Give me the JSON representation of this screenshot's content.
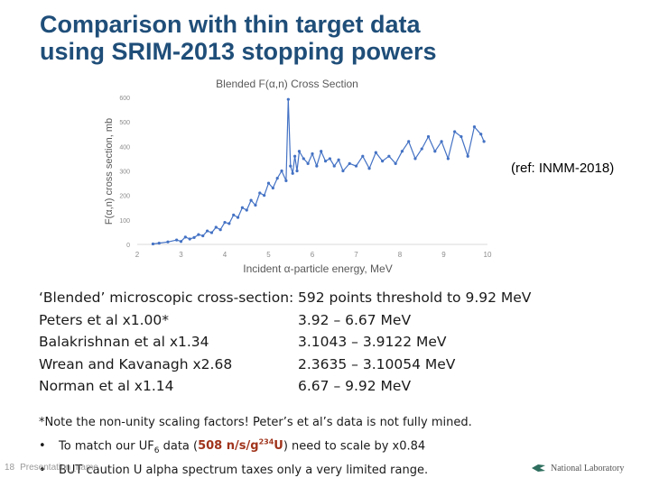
{
  "title_line1": "Comparison with thin target data",
  "title_line2": "using SRIM-2013 stopping powers",
  "ref": "(ref: INMM-2018)",
  "chart_data": {
    "type": "line",
    "title": "Blended F(α,n) Cross Section",
    "xlabel": "Incident α-particle energy, MeV",
    "ylabel": "F(α,n) cross section, mb",
    "xlim": [
      2,
      10
    ],
    "ylim": [
      0,
      600
    ],
    "xticks": [
      "2",
      "3",
      "4",
      "5",
      "6",
      "7",
      "8",
      "9",
      "10"
    ],
    "yticks": [
      "0",
      "100",
      "200",
      "300",
      "400",
      "500",
      "600"
    ],
    "grid": false,
    "legend": "none",
    "color": "#4472c4",
    "series": [
      {
        "x": [
          2.36,
          2.5,
          2.7,
          2.9,
          3.0,
          3.1,
          3.2,
          3.3,
          3.4,
          3.5,
          3.6,
          3.7,
          3.8,
          3.9,
          4.0,
          4.1,
          4.2,
          4.3,
          4.4,
          4.5,
          4.6,
          4.7,
          4.8,
          4.9,
          5.0,
          5.1,
          5.2,
          5.3,
          5.4,
          5.45,
          5.5,
          5.55,
          5.6,
          5.65,
          5.7,
          5.8,
          5.9,
          6.0,
          6.1,
          6.2,
          6.3,
          6.4,
          6.5,
          6.6,
          6.7,
          6.85,
          7.0,
          7.15,
          7.3,
          7.45,
          7.6,
          7.75,
          7.9,
          8.05,
          8.2,
          8.35,
          8.5,
          8.65,
          8.8,
          8.95,
          9.1,
          9.25,
          9.4,
          9.55,
          9.7,
          9.85,
          9.92
        ],
        "y": [
          2,
          5,
          10,
          18,
          12,
          30,
          22,
          28,
          40,
          35,
          55,
          48,
          70,
          60,
          90,
          85,
          120,
          110,
          150,
          140,
          180,
          160,
          210,
          200,
          250,
          230,
          270,
          300,
          260,
          592,
          320,
          290,
          360,
          300,
          380,
          350,
          330,
          370,
          320,
          380,
          340,
          350,
          320,
          345,
          300,
          330,
          320,
          360,
          310,
          375,
          340,
          360,
          330,
          380,
          420,
          350,
          390,
          440,
          380,
          420,
          350,
          460,
          440,
          360,
          480,
          450,
          420
        ]
      }
    ]
  },
  "lines": [
    {
      "left": "‘Blended’ microscopic cross-section:",
      "right": "592 points threshold to 9.92 MeV"
    },
    {
      "left": "Peters et al x1.00*",
      "right": "3.92 – 6.67 MeV"
    },
    {
      "left": "Balakrishnan et al x1.34",
      "right": "3.1043 – 3.9122 MeV"
    },
    {
      "left": "Wrean and Kavanagh x2.68",
      "right": "2.3635 – 3.10054 MeV"
    },
    {
      "left": "Norman et al x1.14",
      "right": "6.67 – 9.92 MeV"
    }
  ],
  "note": {
    "line1": "*Note the non-unity scaling factors! Peter’s et al’s data is not fully mined.",
    "bullet_marker": "•",
    "bullet1_pre": "To match our UF",
    "bullet1_sub": "6",
    "bullet1_mid": " data (",
    "bullet1_hl_a": "508 n/s/g",
    "bullet1_hl_sup": "234",
    "bullet1_hl_b": "U",
    "bullet1_post": ") need to scale by x0.84",
    "bullet2": "BUT caution U alpha spectrum taxes only a very limited range."
  },
  "footer": {
    "page": "18",
    "label": "Presentation_name"
  },
  "logo_text": "National Laboratory"
}
